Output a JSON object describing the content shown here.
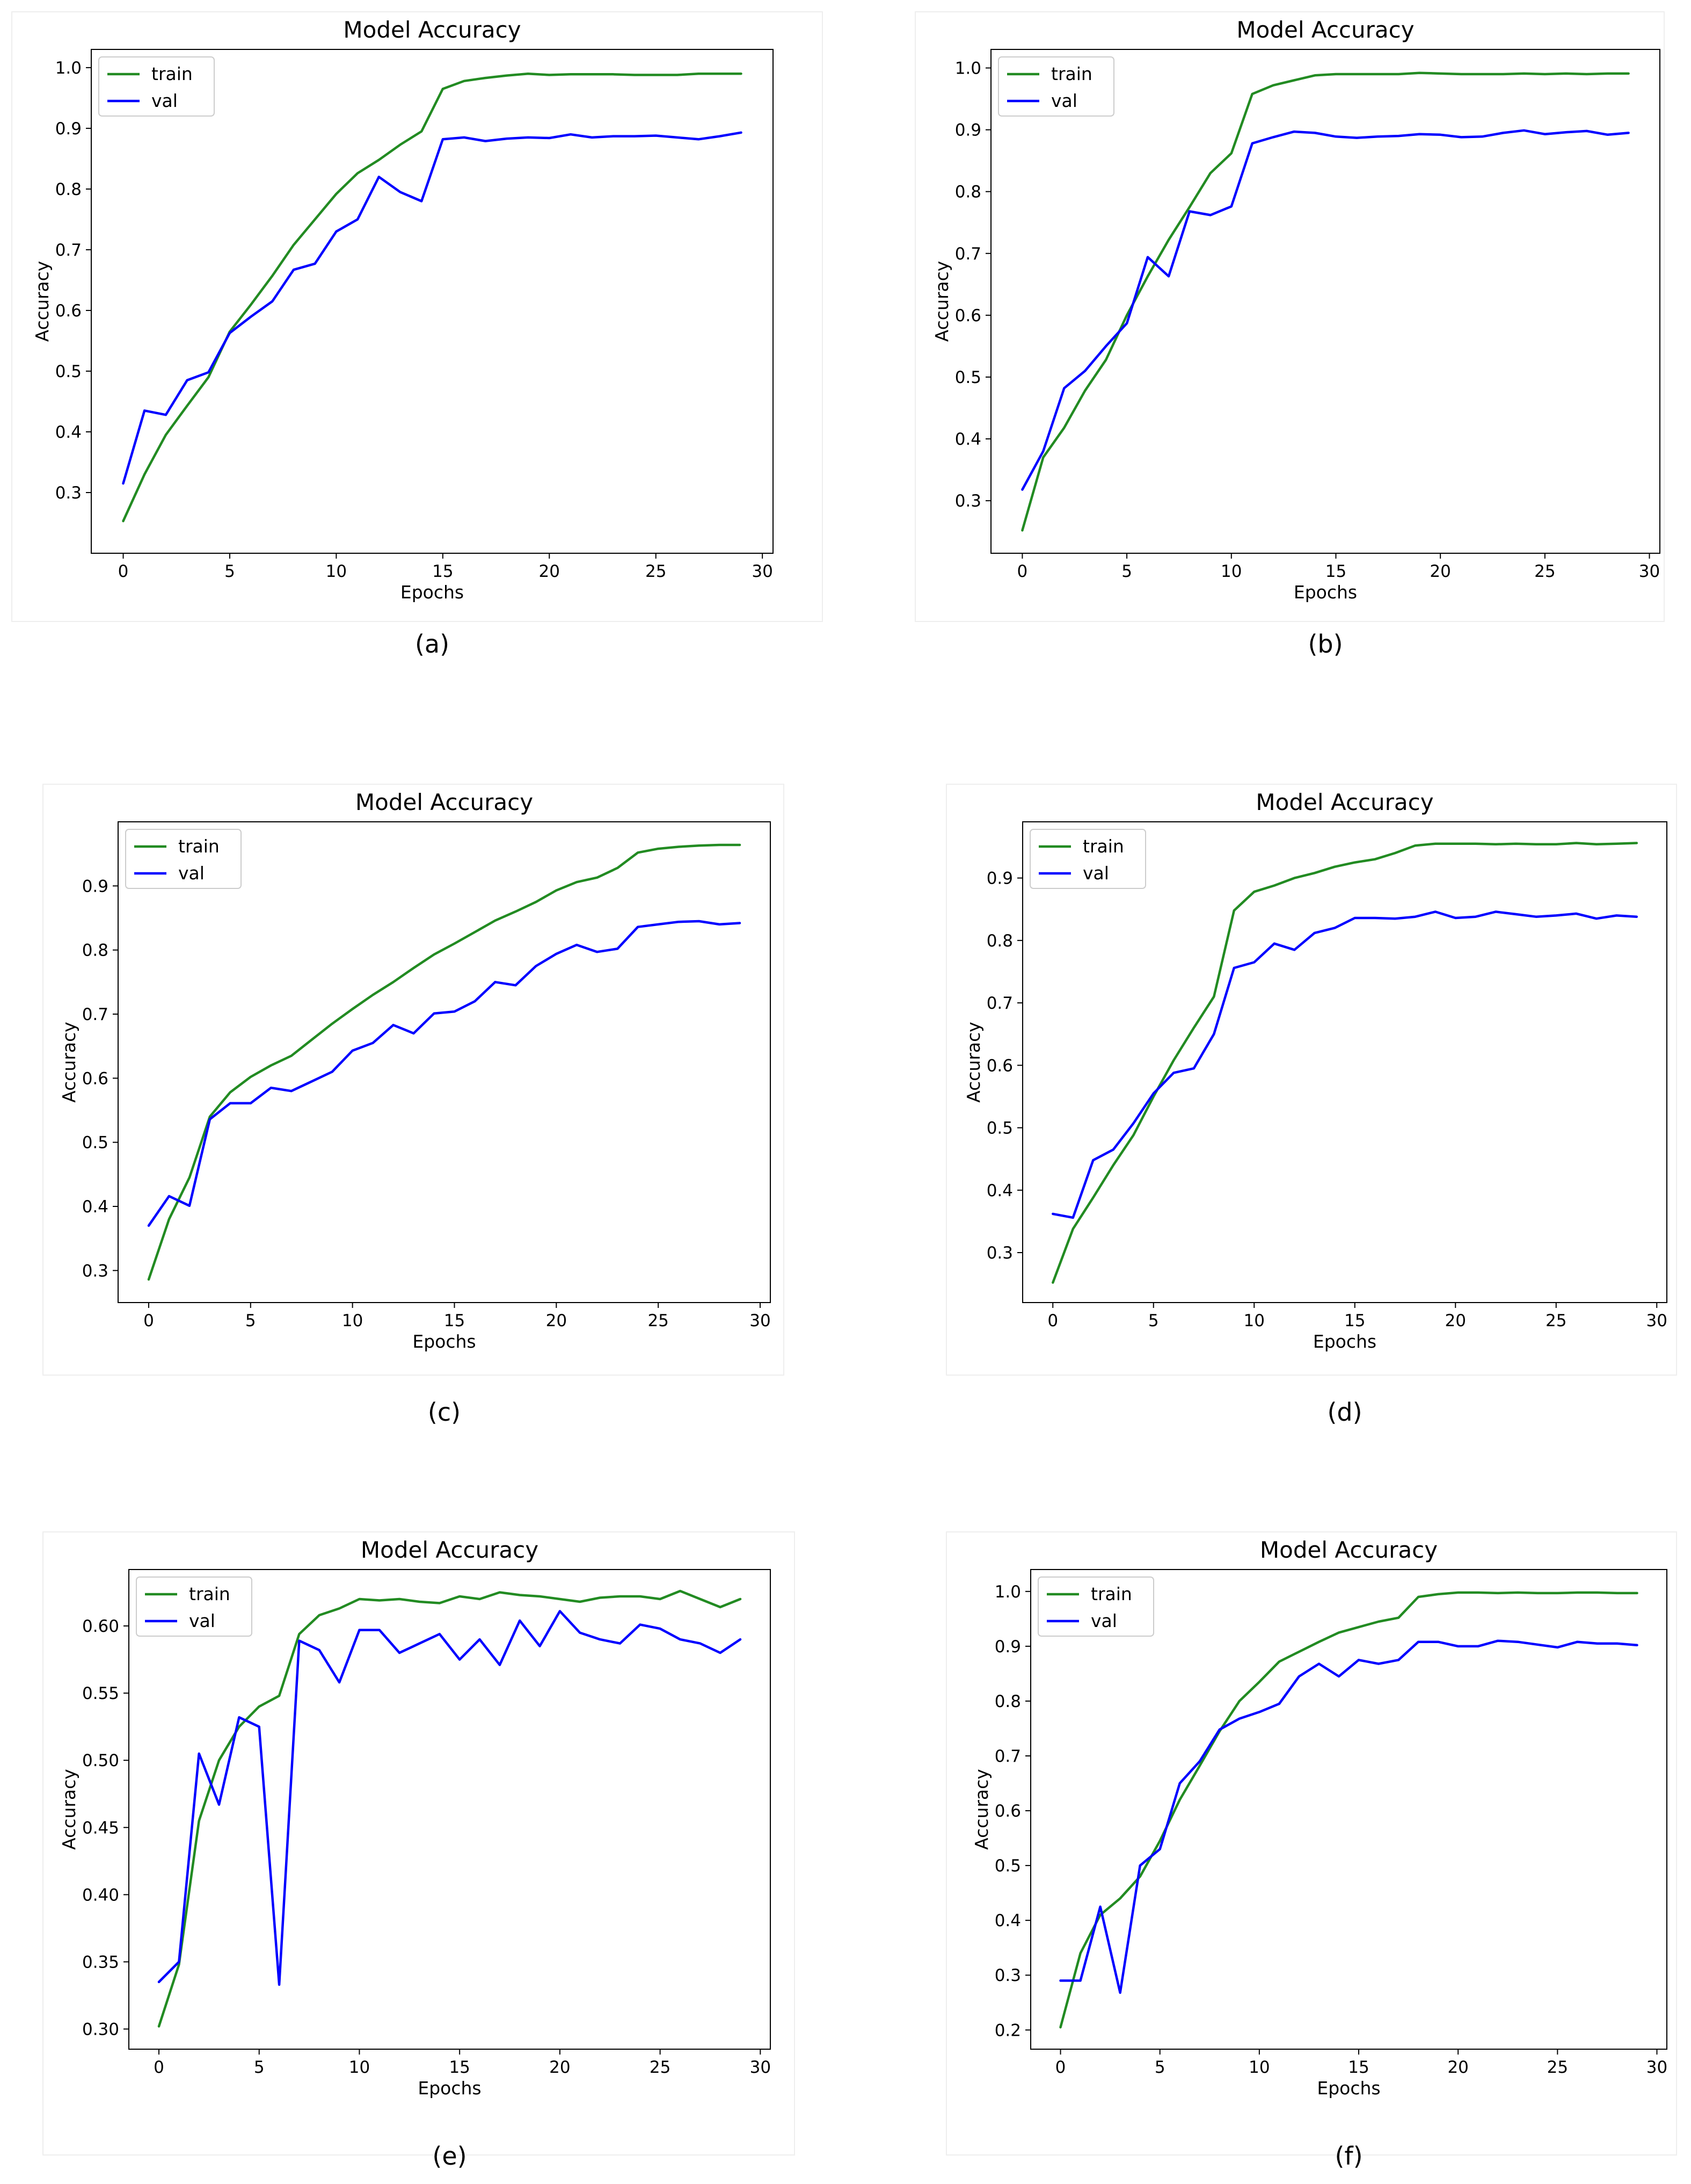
{
  "colors": {
    "train": "#228b22",
    "val": "#0000ff",
    "axes": "#000000"
  },
  "chart_data": [
    {
      "type": "line",
      "caption": "(a)",
      "title": "Model Accuracy",
      "xlabel": "Epochs",
      "ylabel": "Accuracy",
      "xlim": [
        -1.5,
        30.5
      ],
      "ylim": [
        0.2,
        1.03
      ],
      "xticks": [
        0,
        5,
        10,
        15,
        20,
        25,
        30
      ],
      "xtick_labels": [
        "0",
        "5",
        "10",
        "15",
        "20",
        "25",
        "30"
      ],
      "yticks": [
        0.3,
        0.4,
        0.5,
        0.6,
        0.7,
        0.8,
        0.9,
        1.0
      ],
      "ytick_labels": [
        "0.3",
        "0.4",
        "0.5",
        "0.6",
        "0.7",
        "0.8",
        "0.9",
        "1.0"
      ],
      "legend_position": "top-left",
      "series": [
        {
          "name": "train",
          "color": "#228b22",
          "values": [
            0.253,
            0.33,
            0.395,
            0.443,
            0.49,
            0.565,
            0.61,
            0.657,
            0.708,
            0.75,
            0.792,
            0.826,
            0.848,
            0.873,
            0.895,
            0.965,
            0.978,
            0.983,
            0.987,
            0.99,
            0.988,
            0.989,
            0.989,
            0.989,
            0.988,
            0.988,
            0.988,
            0.99,
            0.99,
            0.99
          ]
        },
        {
          "name": "val",
          "color": "#0000ff",
          "values": [
            0.315,
            0.435,
            0.428,
            0.485,
            0.498,
            0.563,
            0.59,
            0.615,
            0.667,
            0.677,
            0.73,
            0.75,
            0.82,
            0.795,
            0.78,
            0.882,
            0.885,
            0.879,
            0.883,
            0.885,
            0.884,
            0.89,
            0.885,
            0.887,
            0.887,
            0.888,
            0.885,
            0.882,
            0.887,
            0.893
          ]
        }
      ]
    },
    {
      "type": "line",
      "caption": "(b)",
      "title": "Model Accuracy",
      "xlabel": "Epochs",
      "ylabel": "Accuracy",
      "xlim": [
        -1.5,
        30.5
      ],
      "ylim": [
        0.215,
        1.03
      ],
      "xticks": [
        0,
        5,
        10,
        15,
        20,
        25,
        30
      ],
      "xtick_labels": [
        "0",
        "5",
        "10",
        "15",
        "20",
        "25",
        "30"
      ],
      "yticks": [
        0.3,
        0.4,
        0.5,
        0.6,
        0.7,
        0.8,
        0.9,
        1.0
      ],
      "ytick_labels": [
        "0.3",
        "0.4",
        "0.5",
        "0.6",
        "0.7",
        "0.8",
        "0.9",
        "1.0"
      ],
      "legend_position": "top-left",
      "series": [
        {
          "name": "train",
          "color": "#228b22",
          "values": [
            0.252,
            0.37,
            0.418,
            0.478,
            0.528,
            0.6,
            0.663,
            0.722,
            0.775,
            0.83,
            0.862,
            0.958,
            0.972,
            0.98,
            0.988,
            0.99,
            0.99,
            0.99,
            0.99,
            0.992,
            0.991,
            0.99,
            0.99,
            0.99,
            0.991,
            0.99,
            0.991,
            0.99,
            0.991,
            0.991
          ]
        },
        {
          "name": "val",
          "color": "#0000ff",
          "values": [
            0.318,
            0.38,
            0.482,
            0.51,
            0.55,
            0.587,
            0.694,
            0.663,
            0.768,
            0.762,
            0.776,
            0.878,
            0.888,
            0.897,
            0.895,
            0.889,
            0.887,
            0.889,
            0.89,
            0.893,
            0.892,
            0.888,
            0.889,
            0.895,
            0.899,
            0.893,
            0.896,
            0.898,
            0.892,
            0.895
          ]
        }
      ]
    },
    {
      "type": "line",
      "caption": "(c)",
      "title": "Model Accuracy",
      "xlabel": "Epochs",
      "ylabel": "Accuracy",
      "xlim": [
        -1.5,
        30.5
      ],
      "ylim": [
        0.25,
        1.0
      ],
      "xticks": [
        0,
        5,
        10,
        15,
        20,
        25,
        30
      ],
      "xtick_labels": [
        "0",
        "5",
        "10",
        "15",
        "20",
        "25",
        "30"
      ],
      "yticks": [
        0.3,
        0.4,
        0.5,
        0.6,
        0.7,
        0.8,
        0.9
      ],
      "ytick_labels": [
        "0.3",
        "0.4",
        "0.5",
        "0.6",
        "0.7",
        "0.8",
        "0.9"
      ],
      "legend_position": "top-left",
      "series": [
        {
          "name": "train",
          "color": "#228b22",
          "values": [
            0.286,
            0.38,
            0.445,
            0.54,
            0.578,
            0.602,
            0.62,
            0.635,
            0.66,
            0.685,
            0.708,
            0.73,
            0.75,
            0.772,
            0.793,
            0.81,
            0.828,
            0.846,
            0.86,
            0.875,
            0.893,
            0.906,
            0.913,
            0.928,
            0.952,
            0.958,
            0.961,
            0.963,
            0.964,
            0.964
          ]
        },
        {
          "name": "val",
          "color": "#0000ff",
          "values": [
            0.37,
            0.416,
            0.401,
            0.536,
            0.561,
            0.561,
            0.585,
            0.58,
            0.595,
            0.61,
            0.643,
            0.655,
            0.683,
            0.67,
            0.701,
            0.704,
            0.72,
            0.75,
            0.745,
            0.775,
            0.794,
            0.808,
            0.797,
            0.802,
            0.836,
            0.84,
            0.844,
            0.845,
            0.84,
            0.842
          ]
        }
      ]
    },
    {
      "type": "line",
      "caption": "(d)",
      "title": "Model Accuracy",
      "xlabel": "Epochs",
      "ylabel": "Accuracy",
      "xlim": [
        -1.5,
        30.5
      ],
      "ylim": [
        0.22,
        0.99
      ],
      "xticks": [
        0,
        5,
        10,
        15,
        20,
        25,
        30
      ],
      "xtick_labels": [
        "0",
        "5",
        "10",
        "15",
        "20",
        "25",
        "30"
      ],
      "yticks": [
        0.3,
        0.4,
        0.5,
        0.6,
        0.7,
        0.8,
        0.9
      ],
      "ytick_labels": [
        "0.3",
        "0.4",
        "0.5",
        "0.6",
        "0.7",
        "0.8",
        "0.9"
      ],
      "legend_position": "top-left",
      "series": [
        {
          "name": "train",
          "color": "#228b22",
          "values": [
            0.252,
            0.338,
            0.388,
            0.44,
            0.488,
            0.55,
            0.608,
            0.66,
            0.71,
            0.848,
            0.878,
            0.888,
            0.9,
            0.908,
            0.918,
            0.925,
            0.93,
            0.94,
            0.952,
            0.955,
            0.955,
            0.955,
            0.954,
            0.955,
            0.954,
            0.954,
            0.956,
            0.954,
            0.955,
            0.956
          ]
        },
        {
          "name": "val",
          "color": "#0000ff",
          "values": [
            0.362,
            0.356,
            0.448,
            0.465,
            0.507,
            0.555,
            0.588,
            0.595,
            0.65,
            0.756,
            0.765,
            0.795,
            0.785,
            0.812,
            0.82,
            0.836,
            0.836,
            0.835,
            0.838,
            0.846,
            0.836,
            0.838,
            0.846,
            0.842,
            0.838,
            0.84,
            0.843,
            0.835,
            0.84,
            0.838
          ]
        }
      ]
    },
    {
      "type": "line",
      "caption": "(e)",
      "title": "Model Accuracy",
      "xlabel": "Epochs",
      "ylabel": "Accuracy",
      "xlim": [
        -1.5,
        30.5
      ],
      "ylim": [
        0.285,
        0.642
      ],
      "xticks": [
        0,
        5,
        10,
        15,
        20,
        25,
        30
      ],
      "xtick_labels": [
        "0",
        "5",
        "10",
        "15",
        "20",
        "25",
        "30"
      ],
      "yticks": [
        0.3,
        0.35,
        0.4,
        0.45,
        0.5,
        0.55,
        0.6
      ],
      "ytick_labels": [
        "0.30",
        "0.35",
        "0.40",
        "0.45",
        "0.50",
        "0.55",
        "0.60"
      ],
      "legend_position": "top-left",
      "series": [
        {
          "name": "train",
          "color": "#228b22",
          "values": [
            0.302,
            0.348,
            0.455,
            0.5,
            0.525,
            0.54,
            0.548,
            0.594,
            0.608,
            0.613,
            0.62,
            0.619,
            0.62,
            0.618,
            0.617,
            0.622,
            0.62,
            0.625,
            0.623,
            0.622,
            0.62,
            0.618,
            0.621,
            0.622,
            0.622,
            0.62,
            0.626,
            0.62,
            0.614,
            0.62
          ]
        },
        {
          "name": "val",
          "color": "#0000ff",
          "values": [
            0.335,
            0.35,
            0.505,
            0.467,
            0.532,
            0.525,
            0.333,
            0.589,
            0.582,
            0.558,
            0.597,
            0.597,
            0.58,
            0.587,
            0.594,
            0.575,
            0.59,
            0.571,
            0.604,
            0.585,
            0.611,
            0.595,
            0.59,
            0.587,
            0.601,
            0.598,
            0.59,
            0.587,
            0.58,
            0.59
          ]
        }
      ]
    },
    {
      "type": "line",
      "caption": "(f)",
      "title": "Model Accuracy",
      "xlabel": "Epochs",
      "ylabel": "Accuracy",
      "xlim": [
        -1.5,
        30.5
      ],
      "ylim": [
        0.165,
        1.04
      ],
      "xticks": [
        0,
        5,
        10,
        15,
        20,
        25,
        30
      ],
      "xtick_labels": [
        "0",
        "5",
        "10",
        "15",
        "20",
        "25",
        "30"
      ],
      "yticks": [
        0.2,
        0.3,
        0.4,
        0.5,
        0.6,
        0.7,
        0.8,
        0.9,
        1.0
      ],
      "ytick_labels": [
        "0.2",
        "0.3",
        "0.4",
        "0.5",
        "0.6",
        "0.7",
        "0.8",
        "0.9",
        "1.0"
      ],
      "legend_position": "top-left",
      "series": [
        {
          "name": "train",
          "color": "#228b22",
          "values": [
            0.205,
            0.34,
            0.41,
            0.44,
            0.48,
            0.545,
            0.62,
            0.682,
            0.745,
            0.8,
            0.835,
            0.872,
            0.89,
            0.908,
            0.925,
            0.935,
            0.945,
            0.952,
            0.99,
            0.995,
            0.998,
            0.998,
            0.997,
            0.998,
            0.997,
            0.997,
            0.998,
            0.998,
            0.997,
            0.997
          ]
        },
        {
          "name": "val",
          "color": "#0000ff",
          "values": [
            0.29,
            0.29,
            0.425,
            0.268,
            0.5,
            0.53,
            0.65,
            0.69,
            0.748,
            0.768,
            0.78,
            0.795,
            0.845,
            0.868,
            0.845,
            0.875,
            0.868,
            0.875,
            0.908,
            0.908,
            0.9,
            0.9,
            0.91,
            0.908,
            0.903,
            0.898,
            0.908,
            0.905,
            0.905,
            0.902
          ]
        }
      ]
    }
  ]
}
